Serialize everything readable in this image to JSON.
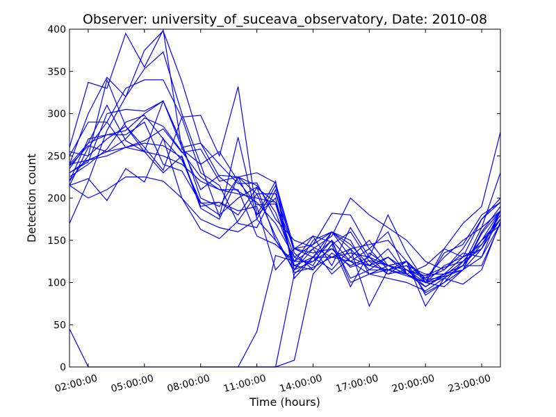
{
  "chart_data": {
    "type": "line",
    "title": "Observer: university_of_suceava_observatory, Date: 2010-08",
    "xlabel": "Time (hours)",
    "ylabel": "Detection count",
    "xlim": [
      1,
      24
    ],
    "ylim": [
      0,
      400
    ],
    "x_ticks": [
      {
        "value": 2,
        "label": "02:00:00"
      },
      {
        "value": 5,
        "label": "05:00:00"
      },
      {
        "value": 8,
        "label": "08:00:00"
      },
      {
        "value": 11,
        "label": "11:00:00"
      },
      {
        "value": 14,
        "label": "14:00:00"
      },
      {
        "value": 17,
        "label": "17:00:00"
      },
      {
        "value": 20,
        "label": "20:00:00"
      },
      {
        "value": 23,
        "label": "23:00:00"
      }
    ],
    "y_ticks": [
      0,
      50,
      100,
      150,
      200,
      250,
      300,
      350,
      400
    ],
    "grid": false,
    "legend": "none",
    "color": "#0000ff",
    "x": [
      1,
      2,
      3,
      4,
      5,
      6,
      7,
      8,
      9,
      10,
      11,
      12,
      13,
      14,
      15,
      16,
      17,
      18,
      19,
      20,
      21,
      22,
      23,
      24
    ],
    "series": [
      {
        "values": [
          45,
          0,
          0,
          0,
          0,
          0,
          0,
          0,
          0,
          0,
          0,
          0,
          8,
          110,
          135,
          120,
          130,
          110,
          115,
          95,
          110,
          130,
          175,
          195
        ]
      },
      {
        "values": [
          null,
          null,
          null,
          null,
          null,
          null,
          null,
          0,
          0,
          0,
          0,
          0,
          110,
          130,
          150,
          100,
          110,
          120,
          125,
          100,
          135,
          145,
          180,
          195
        ]
      },
      {
        "values": [
          null,
          null,
          null,
          null,
          null,
          null,
          null,
          null,
          null,
          0,
          42,
          132,
          125,
          140,
          110,
          130,
          120,
          140,
          110,
          120,
          140,
          170,
          190,
          278
        ]
      },
      {
        "values": [
          255,
          250,
          270,
          285,
          260,
          233,
          296,
          298,
          250,
          332,
          180,
          220,
          105,
          130,
          160,
          150,
          110,
          105,
          100,
          90,
          105,
          120,
          150,
          175
        ]
      },
      {
        "values": [
          260,
          337,
          330,
          395,
          355,
          399,
          258,
          240,
          178,
          272,
          175,
          215,
          135,
          115,
          145,
          160,
          125,
          110,
          125,
          85,
          100,
          125,
          150,
          185
        ]
      },
      {
        "values": [
          170,
          220,
          280,
          320,
          353,
          373,
          300,
          240,
          255,
          220,
          192,
          193,
          120,
          115,
          145,
          95,
          135,
          120,
          110,
          95,
          108,
          125,
          140,
          185
        ]
      },
      {
        "values": [
          240,
          300,
          343,
          320,
          375,
          398,
          338,
          265,
          225,
          208,
          195,
          170,
          130,
          145,
          182,
          180,
          140,
          115,
          108,
          100,
          110,
          120,
          165,
          230
        ]
      },
      {
        "values": [
          215,
          260,
          290,
          330,
          340,
          340,
          295,
          230,
          215,
          170,
          165,
          210,
          115,
          140,
          155,
          200,
          180,
          165,
          150,
          125,
          115,
          140,
          175,
          200
        ]
      },
      {
        "values": [
          220,
          270,
          275,
          280,
          300,
          315,
          265,
          200,
          190,
          225,
          215,
          183,
          125,
          155,
          120,
          165,
          130,
          180,
          135,
          100,
          140,
          130,
          145,
          175
        ]
      },
      {
        "values": [
          230,
          245,
          255,
          270,
          295,
          285,
          255,
          225,
          210,
          205,
          200,
          195,
          140,
          145,
          160,
          140,
          145,
          150,
          125,
          105,
          115,
          135,
          130,
          170
        ]
      },
      {
        "values": [
          215,
          200,
          210,
          225,
          225,
          220,
          200,
          175,
          165,
          160,
          175,
          150,
          120,
          130,
          130,
          125,
          110,
          115,
          110,
          95,
          110,
          115,
          140,
          185
        ]
      },
      {
        "values": [
          235,
          265,
          310,
          268,
          255,
          230,
          250,
          190,
          195,
          185,
          190,
          115,
          140,
          130,
          115,
          140,
          115,
          130,
          115,
          100,
          120,
          130,
          140,
          175
        ]
      },
      {
        "values": [
          220,
          250,
          340,
          285,
          255,
          250,
          240,
          220,
          210,
          210,
          155,
          145,
          125,
          125,
          140,
          125,
          120,
          115,
          120,
          110,
          110,
          120,
          145,
          180
        ]
      },
      {
        "values": [
          250,
          290,
          290,
          260,
          268,
          282,
          254,
          258,
          220,
          225,
          230,
          218,
          140,
          155,
          148,
          105,
          115,
          115,
          120,
          88,
          100,
          115,
          160,
          190
        ]
      },
      {
        "values": [
          225,
          240,
          258,
          290,
          298,
          270,
          245,
          195,
          180,
          200,
          213,
          150,
          115,
          150,
          160,
          145,
          120,
          130,
          110,
          100,
          105,
          120,
          120,
          170
        ]
      },
      {
        "values": [
          240,
          265,
          275,
          275,
          290,
          240,
          232,
          194,
          195,
          180,
          212,
          195,
          130,
          120,
          160,
          130,
          150,
          120,
          115,
          105,
          130,
          150,
          165,
          185
        ]
      },
      {
        "values": [
          240,
          245,
          250,
          260,
          265,
          262,
          248,
          188,
          175,
          225,
          180,
          200,
          115,
          125,
          150,
          125,
          140,
          160,
          110,
          100,
          95,
          115,
          130,
          185
        ]
      },
      {
        "values": [
          215,
          223,
          197,
          235,
          219,
          271,
          200,
          163,
          152,
          173,
          205,
          155,
          112,
          118,
          130,
          135,
          130,
          120,
          115,
          108,
          118,
          125,
          150,
          168
        ]
      },
      {
        "values": [
          230,
          243,
          300,
          305,
          303,
          315,
          260,
          265,
          240,
          217,
          218,
          175,
          150,
          142,
          130,
          140,
          72,
          115,
          125,
          72,
          105,
          98,
          115,
          172
        ]
      },
      {
        "values": [
          238,
          262,
          255,
          260,
          255,
          315,
          260,
          210,
          227,
          225,
          205,
          205,
          140,
          135,
          140,
          118,
          126,
          120,
          125,
          103,
          107,
          115,
          158,
          185
        ]
      }
    ]
  }
}
